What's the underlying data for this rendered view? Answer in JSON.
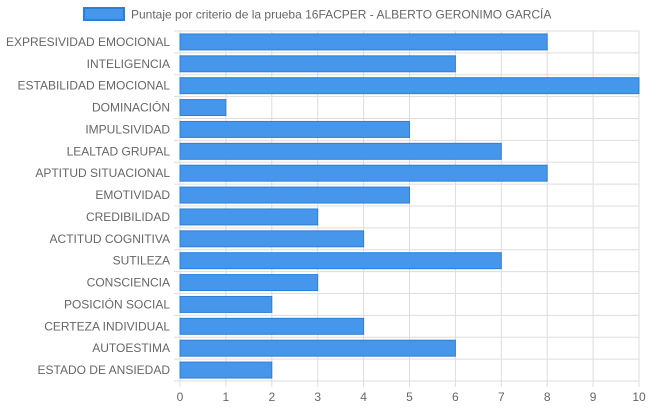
{
  "chart_data": {
    "type": "bar",
    "orientation": "horizontal",
    "categories": [
      "EXPRESIVIDAD EMOCIONAL",
      "INTELIGENCIA",
      "ESTABILIDAD EMOCIONAL",
      "DOMINACIÓN",
      "IMPULSIVIDAD",
      "LEALTAD GRUPAL",
      "APTITUD SITUACIONAL",
      "EMOTIVIDAD",
      "CREDIBILIDAD",
      "ACTITUD COGNITIVA",
      "SUTILEZA",
      "CONSCIENCIA",
      "POSICIÓN SOCIAL",
      "CERTEZA INDIVIDUAL",
      "AUTOESTIMA",
      "ESTADO DE ANSIEDAD"
    ],
    "series": [
      {
        "name": "Puntaje por criterio de la prueba 16FACPER - ALBERTO GERONIMO GARCÍA",
        "values": [
          8,
          6,
          10,
          1,
          5,
          7,
          8,
          5,
          3,
          4,
          7,
          3,
          2,
          4,
          6,
          2
        ]
      }
    ],
    "xlim": [
      0,
      10
    ],
    "xticks": [
      "0",
      "1",
      "2",
      "3",
      "4",
      "5",
      "6",
      "7",
      "8",
      "9",
      "10"
    ],
    "grid": true,
    "legend_position": "top",
    "colors": {
      "bar_fill": "#4696ec",
      "bar_border": "#2d7fd6",
      "grid": "#dddddd",
      "axis_text": "#666666"
    }
  }
}
